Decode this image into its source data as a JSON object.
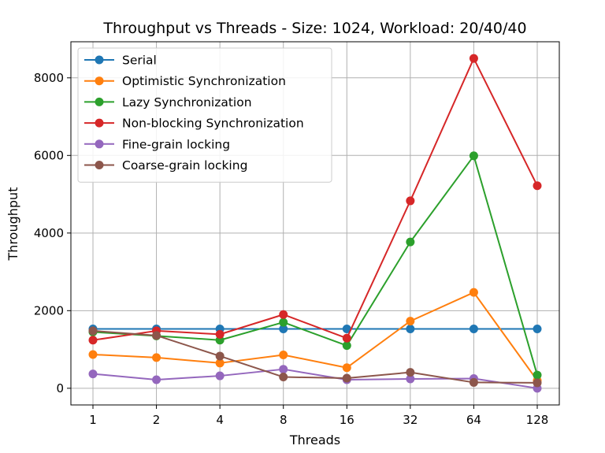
{
  "chart_data": {
    "type": "line",
    "title": "Throughput vs Threads - Size: 1024, Workload: 20/40/40",
    "xlabel": "Threads",
    "ylabel": "Throughput",
    "categories": [
      "1",
      "2",
      "4",
      "8",
      "16",
      "32",
      "64",
      "128"
    ],
    "y_ticks": [
      0,
      2000,
      4000,
      6000,
      8000
    ],
    "ylim": [
      -430,
      8930
    ],
    "grid": true,
    "legend_position": "top-left",
    "series": [
      {
        "name": "Serial",
        "color": "#1f77b4",
        "values": [
          1530,
          1530,
          1530,
          1530,
          1530,
          1530,
          1530,
          1530
        ]
      },
      {
        "name": "Optimistic Synchronization",
        "color": "#ff7f0e",
        "values": [
          870,
          790,
          650,
          860,
          530,
          1730,
          2470,
          200
        ]
      },
      {
        "name": "Lazy Synchronization",
        "color": "#2ca02c",
        "values": [
          1450,
          1350,
          1240,
          1700,
          1100,
          3770,
          5990,
          340
        ]
      },
      {
        "name": "Non-blocking Synchronization",
        "color": "#d62728",
        "values": [
          1240,
          1480,
          1390,
          1900,
          1290,
          4830,
          8500,
          5220
        ]
      },
      {
        "name": "Fine-grain locking",
        "color": "#9467bd",
        "values": [
          370,
          220,
          320,
          490,
          220,
          240,
          250,
          0
        ]
      },
      {
        "name": "Coarse-grain locking",
        "color": "#8c564b",
        "values": [
          1480,
          1360,
          830,
          290,
          260,
          410,
          150,
          140
        ]
      }
    ]
  }
}
